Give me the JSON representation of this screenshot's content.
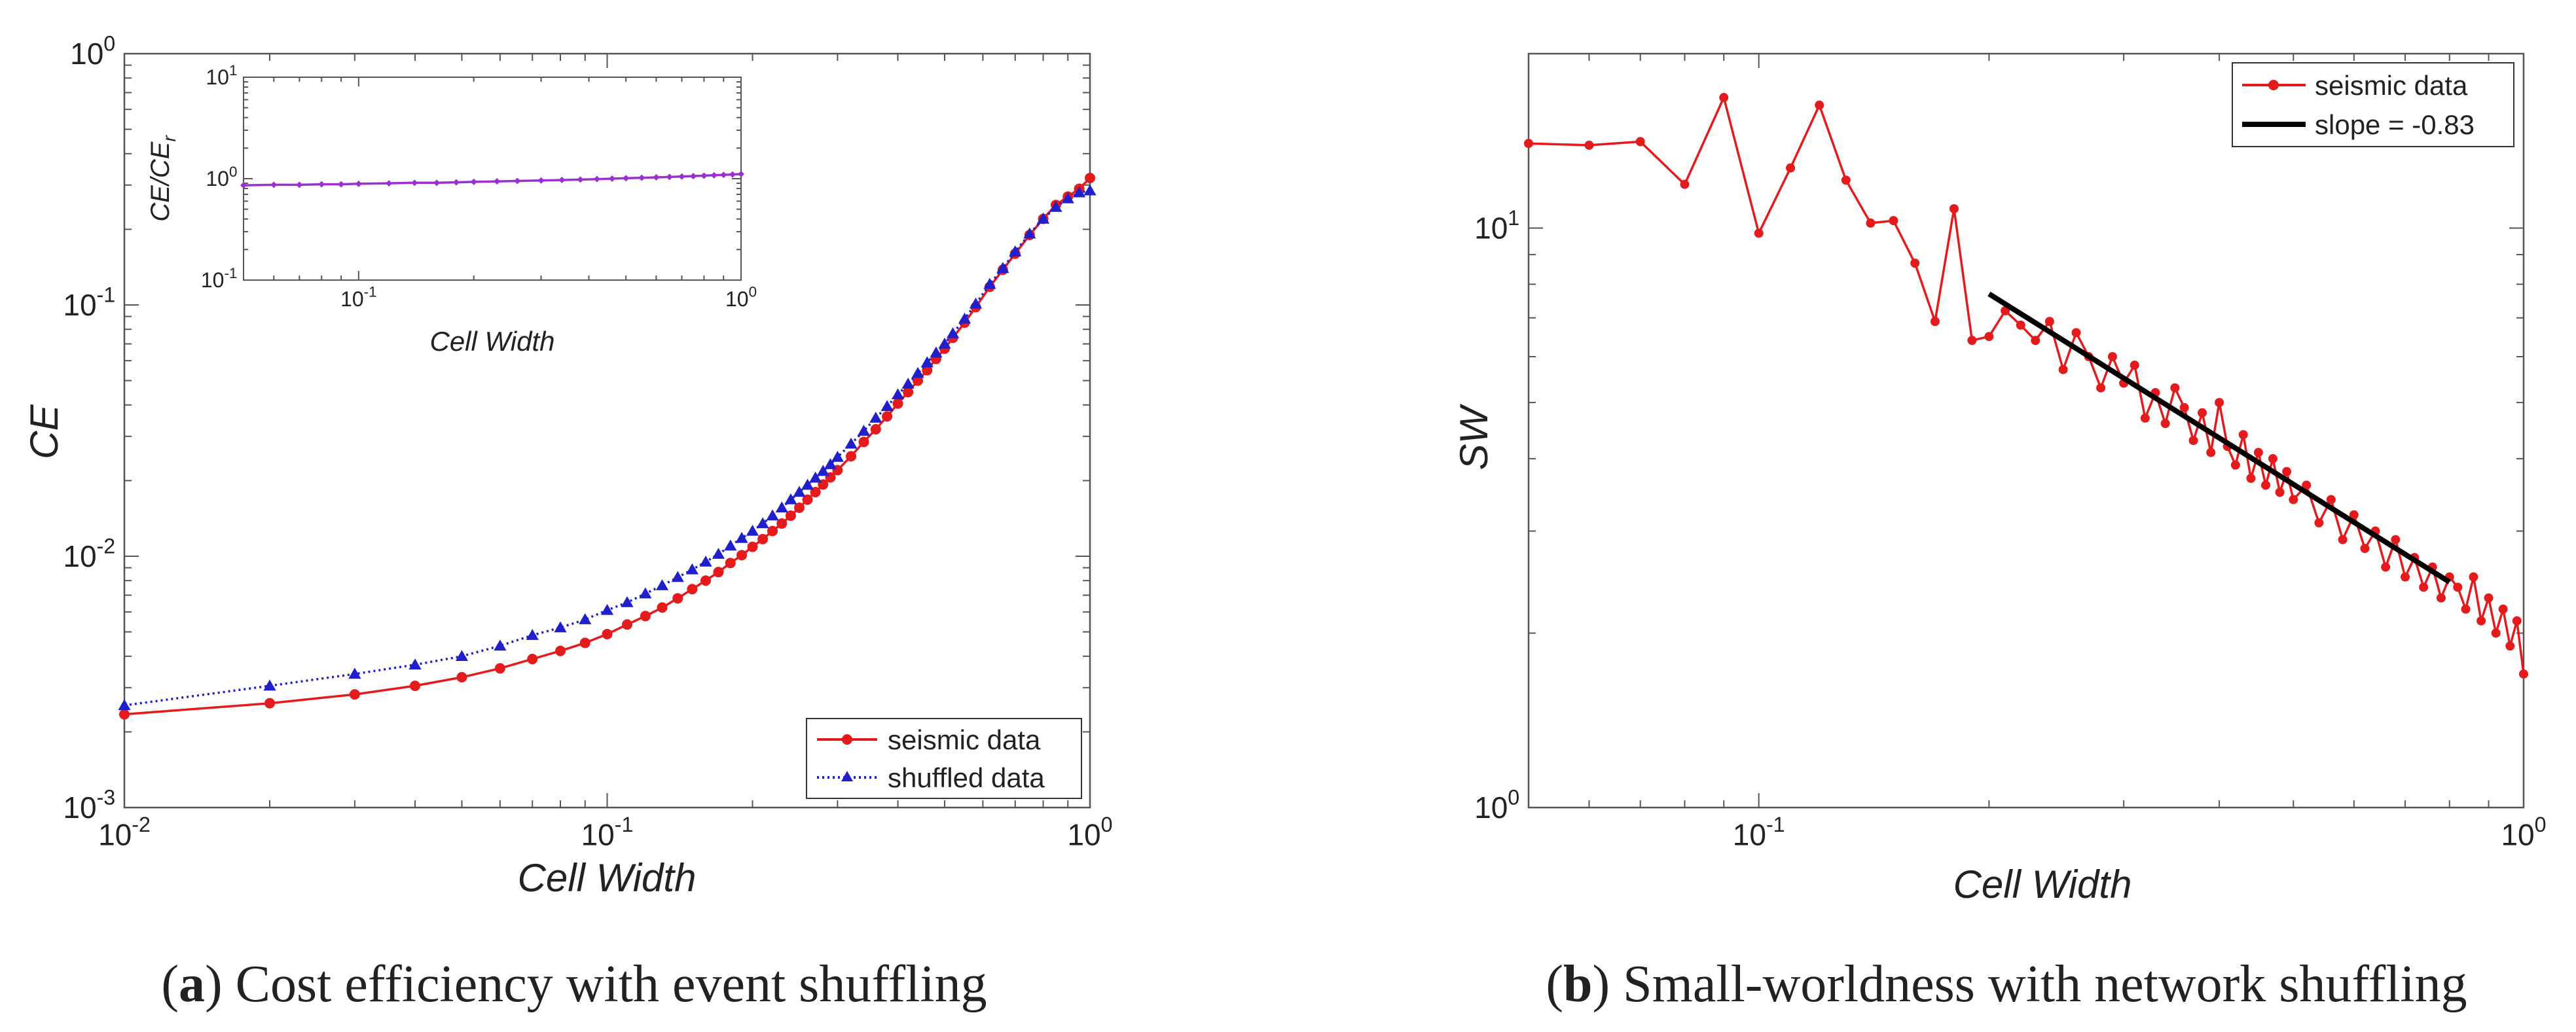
{
  "captions": {
    "a": {
      "label": "a",
      "text": " Cost efficiency with event shuffling"
    },
    "b": {
      "label": "b",
      "text": " Small-worldness with network shuffling"
    }
  },
  "chart_data": [
    {
      "id": "a",
      "type": "line",
      "xscale": "log",
      "yscale": "log",
      "xlim": [
        0.01,
        1
      ],
      "ylim": [
        0.001,
        1
      ],
      "xlabel": "Cell Width",
      "ylabel": "CE",
      "xticks": [
        0.01,
        0.1,
        1
      ],
      "yticks": [
        0.001,
        0.01,
        0.1,
        1
      ],
      "legend": {
        "placement": "bottom-right"
      },
      "series": [
        {
          "name": "seismic data",
          "color": "#e41a1c",
          "marker": "circle",
          "line": "solid",
          "x": [
            0.01,
            0.02,
            0.03,
            0.04,
            0.05,
            0.06,
            0.07,
            0.08,
            0.09,
            0.1,
            0.11,
            0.12,
            0.13,
            0.14,
            0.15,
            0.16,
            0.17,
            0.18,
            0.19,
            0.2,
            0.21,
            0.22,
            0.23,
            0.24,
            0.25,
            0.26,
            0.27,
            0.28,
            0.29,
            0.3,
            0.32,
            0.34,
            0.36,
            0.38,
            0.4,
            0.42,
            0.44,
            0.46,
            0.48,
            0.5,
            0.52,
            0.55,
            0.58,
            0.62,
            0.66,
            0.7,
            0.75,
            0.8,
            0.85,
            0.9,
            0.95,
            1.0
          ],
          "y": [
            0.00235,
            0.0026,
            0.00282,
            0.00305,
            0.0033,
            0.00358,
            0.0039,
            0.0042,
            0.00452,
            0.0049,
            0.00535,
            0.00578,
            0.00625,
            0.0068,
            0.0074,
            0.008,
            0.00865,
            0.0094,
            0.0101,
            0.0109,
            0.0117,
            0.0126,
            0.0135,
            0.0145,
            0.0156,
            0.0168,
            0.018,
            0.0193,
            0.0206,
            0.022,
            0.025,
            0.0285,
            0.032,
            0.036,
            0.0405,
            0.045,
            0.05,
            0.055,
            0.061,
            0.067,
            0.074,
            0.085,
            0.098,
            0.118,
            0.138,
            0.16,
            0.19,
            0.22,
            0.25,
            0.27,
            0.29,
            0.32
          ]
        },
        {
          "name": "shuffled data",
          "color": "#1f1fcc",
          "marker": "triangle",
          "line": "dotted",
          "x": [
            0.01,
            0.02,
            0.03,
            0.04,
            0.05,
            0.06,
            0.07,
            0.08,
            0.09,
            0.1,
            0.11,
            0.12,
            0.13,
            0.14,
            0.15,
            0.16,
            0.17,
            0.18,
            0.19,
            0.2,
            0.21,
            0.22,
            0.23,
            0.24,
            0.25,
            0.26,
            0.27,
            0.28,
            0.29,
            0.3,
            0.32,
            0.34,
            0.36,
            0.38,
            0.4,
            0.42,
            0.44,
            0.46,
            0.48,
            0.5,
            0.52,
            0.55,
            0.58,
            0.62,
            0.66,
            0.7,
            0.75,
            0.8,
            0.85,
            0.9,
            0.95,
            1.0
          ],
          "y": [
            0.00255,
            0.00305,
            0.0034,
            0.0037,
            0.004,
            0.0044,
            0.00485,
            0.0052,
            0.0056,
            0.0061,
            0.00655,
            0.0071,
            0.00765,
            0.00825,
            0.00885,
            0.0095,
            0.0102,
            0.011,
            0.0118,
            0.0126,
            0.0135,
            0.0145,
            0.0156,
            0.0168,
            0.018,
            0.0192,
            0.0205,
            0.0218,
            0.0232,
            0.0248,
            0.028,
            0.0315,
            0.0355,
            0.0395,
            0.044,
            0.0485,
            0.0535,
            0.059,
            0.0645,
            0.07,
            0.077,
            0.088,
            0.101,
            0.121,
            0.14,
            0.163,
            0.192,
            0.22,
            0.245,
            0.265,
            0.28,
            0.285
          ]
        }
      ],
      "inset": {
        "type": "line",
        "xscale": "log",
        "yscale": "log",
        "xlim": [
          0.05,
          1
        ],
        "ylim": [
          0.1,
          10
        ],
        "xlabel": "Cell Width",
        "ylabel": "CE/CE",
        "ylabel_sub": "r",
        "xticks": [
          0.1,
          1
        ],
        "yticks": [
          0.1,
          1,
          10
        ],
        "series": [
          {
            "color": "#9b30d0",
            "marker": "diamond",
            "x": [
              0.05,
              0.06,
              0.07,
              0.08,
              0.09,
              0.1,
              0.12,
              0.14,
              0.16,
              0.18,
              0.2,
              0.23,
              0.26,
              0.3,
              0.34,
              0.38,
              0.42,
              0.46,
              0.5,
              0.55,
              0.6,
              0.65,
              0.7,
              0.75,
              0.8,
              0.85,
              0.9,
              0.95,
              1.0
            ],
            "y": [
              0.86,
              0.87,
              0.87,
              0.88,
              0.88,
              0.89,
              0.9,
              0.91,
              0.91,
              0.92,
              0.93,
              0.94,
              0.95,
              0.96,
              0.97,
              0.98,
              0.99,
              1.0,
              1.01,
              1.02,
              1.03,
              1.04,
              1.05,
              1.06,
              1.07,
              1.08,
              1.09,
              1.1,
              1.11
            ]
          }
        ]
      }
    },
    {
      "id": "b",
      "type": "line",
      "xscale": "log",
      "yscale": "log",
      "xlim": [
        0.05,
        1
      ],
      "ylim": [
        1,
        20
      ],
      "xlabel": "Cell Width",
      "ylabel": "SW",
      "xticks": [
        0.1,
        1
      ],
      "yticks": [
        1,
        10
      ],
      "legend": {
        "placement": "top-right"
      },
      "series": [
        {
          "name": "seismic data",
          "color": "#e41a1c",
          "marker": "circle",
          "line": "solid",
          "x": [
            0.05,
            0.06,
            0.07,
            0.08,
            0.09,
            0.1,
            0.11,
            0.12,
            0.13,
            0.14,
            0.15,
            0.16,
            0.17,
            0.18,
            0.19,
            0.2,
            0.21,
            0.22,
            0.23,
            0.24,
            0.25,
            0.26,
            0.27,
            0.28,
            0.29,
            0.3,
            0.31,
            0.32,
            0.33,
            0.34,
            0.35,
            0.36,
            0.37,
            0.38,
            0.39,
            0.4,
            0.41,
            0.42,
            0.43,
            0.44,
            0.45,
            0.46,
            0.47,
            0.48,
            0.49,
            0.5,
            0.52,
            0.54,
            0.56,
            0.58,
            0.6,
            0.62,
            0.64,
            0.66,
            0.68,
            0.7,
            0.72,
            0.74,
            0.76,
            0.78,
            0.8,
            0.82,
            0.84,
            0.86,
            0.88,
            0.9,
            0.92,
            0.94,
            0.96,
            0.98,
            1.0
          ],
          "y": [
            14.0,
            13.9,
            14.1,
            11.9,
            16.8,
            9.8,
            12.7,
            16.3,
            12.1,
            10.2,
            10.3,
            8.7,
            6.9,
            10.8,
            6.4,
            6.5,
            7.2,
            6.8,
            6.4,
            6.9,
            5.7,
            6.6,
            6.0,
            5.3,
            6.0,
            5.4,
            5.8,
            4.7,
            5.2,
            4.6,
            5.3,
            4.9,
            4.3,
            4.8,
            4.1,
            5.0,
            4.2,
            3.9,
            4.4,
            3.7,
            4.1,
            3.6,
            4.0,
            3.5,
            3.8,
            3.4,
            3.6,
            3.1,
            3.4,
            2.9,
            3.2,
            2.8,
            3.0,
            2.6,
            2.9,
            2.5,
            2.7,
            2.4,
            2.6,
            2.3,
            2.5,
            2.4,
            2.2,
            2.5,
            2.1,
            2.3,
            2.0,
            2.2,
            1.9,
            2.1,
            1.7
          ]
        },
        {
          "name": "slope = -0.83",
          "color": "#000000",
          "marker": "none",
          "line": "thick",
          "x": [
            0.2,
            0.8
          ],
          "y": [
            7.7,
            2.45
          ]
        }
      ]
    }
  ]
}
